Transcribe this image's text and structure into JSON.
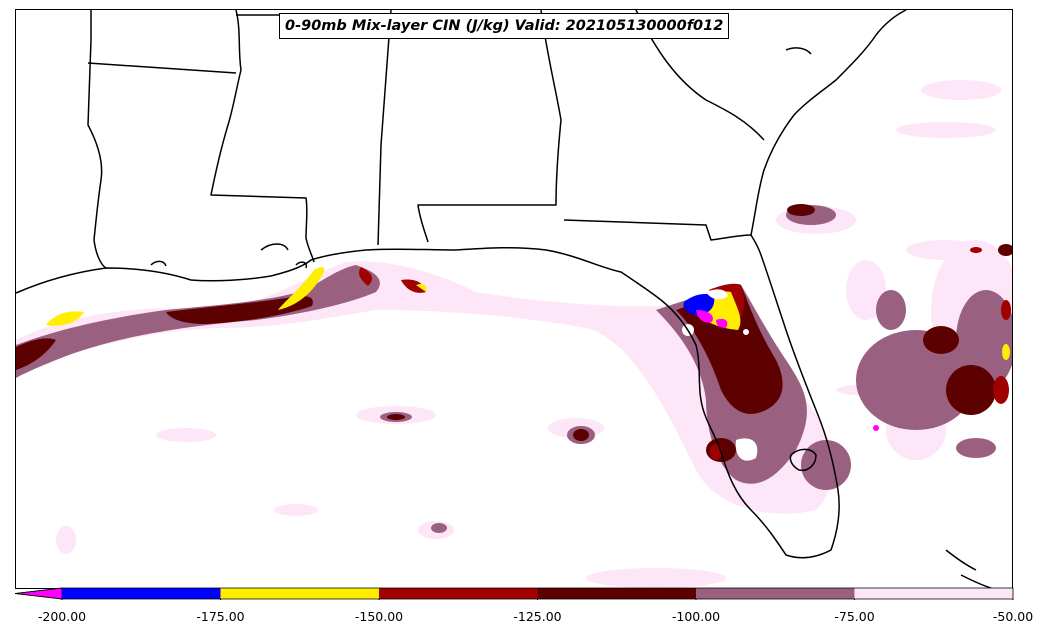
{
  "title": "0-90mb Mix-layer CIN (J/kg) Valid: 202105130000f012",
  "colorbar": {
    "extend": "min",
    "under_color": "#ff00ff",
    "bins": [
      {
        "from": -200,
        "to": -175,
        "color": "#0000ff"
      },
      {
        "from": -175,
        "to": -150,
        "color": "#ffee00"
      },
      {
        "from": -150,
        "to": -125,
        "color": "#a00000"
      },
      {
        "from": -125,
        "to": -100,
        "color": "#5c0000"
      },
      {
        "from": -100,
        "to": -75,
        "color": "#9a6080"
      },
      {
        "from": -75,
        "to": -50,
        "color": "#fde6f7"
      }
    ],
    "tick_labels": [
      "-200.00",
      "-175.00",
      "-150.00",
      "-125.00",
      "-100.00",
      "-75.00",
      "-50.00"
    ]
  },
  "map": {
    "region": "Gulf Coast / Florida",
    "colors": {
      "vlight": "#fde6f7",
      "light": "#9a6080",
      "dark": "#5c0000",
      "red": "#a00000",
      "yellow": "#ffee00",
      "blue": "#0000ff",
      "magenta": "#ff00ff",
      "border": "#000000"
    }
  }
}
